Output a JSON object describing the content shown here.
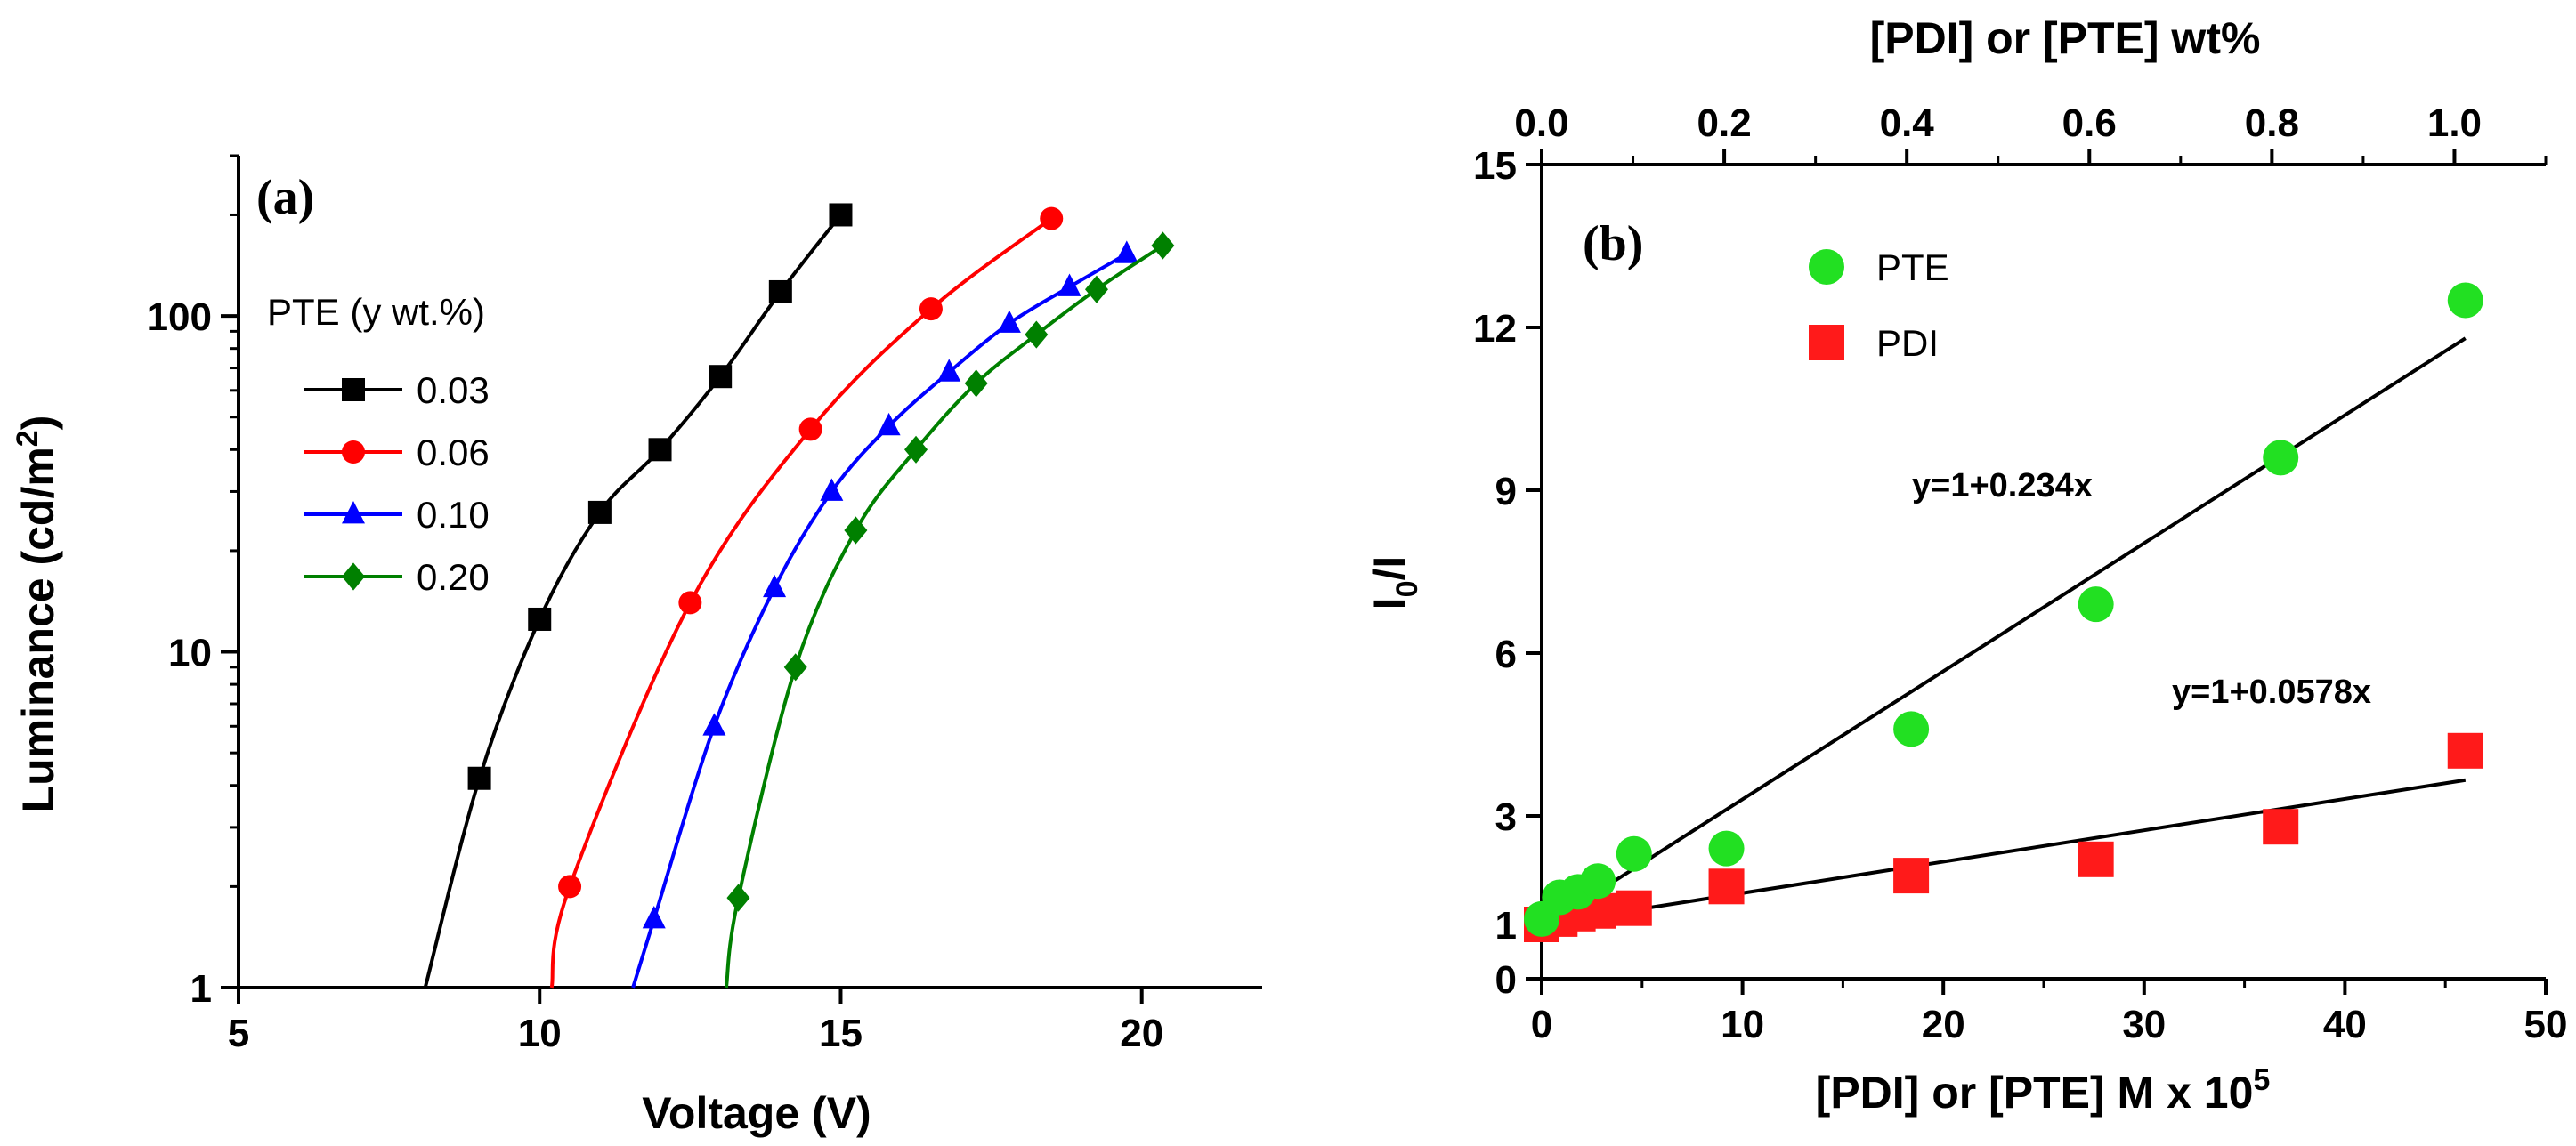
{
  "chart_data": [
    {
      "panel": "(a)",
      "type": "line",
      "xlabel": "Voltage (V)",
      "ylabel": "Luminance (cd/m²)",
      "xlim": [
        5,
        22
      ],
      "ylim": [
        1,
        300
      ],
      "yscale": "log",
      "xticks": [
        5,
        10,
        15,
        20
      ],
      "yticks": [
        1,
        10,
        100
      ],
      "legend_title": "PTE (y wt.%)",
      "legend_position": "upper-left",
      "series": [
        {
          "name": "0.03",
          "color": "#000000",
          "marker": "square",
          "x": [
            8.1,
            9.0,
            10.0,
            11.0,
            12.0,
            13.0,
            14.0,
            15.0
          ],
          "y": [
            1.0,
            4.2,
            12.5,
            26,
            40,
            66,
            118,
            200
          ]
        },
        {
          "name": "0.06",
          "color": "#ff0000",
          "marker": "circle",
          "x": [
            10.2,
            10.5,
            12.5,
            14.5,
            16.5,
            18.5
          ],
          "y": [
            1.0,
            2.0,
            14,
            46,
            105,
            195
          ]
        },
        {
          "name": "0.10",
          "color": "#0000ff",
          "marker": "triangle",
          "x": [
            11.55,
            11.9,
            12.9,
            13.9,
            14.85,
            15.8,
            16.8,
            17.8,
            18.8,
            19.75
          ],
          "y": [
            1.0,
            1.6,
            6,
            15.5,
            30,
            47,
            68,
            95,
            122,
            153
          ]
        },
        {
          "name": "0.20",
          "color": "#008000",
          "marker": "diamond",
          "x": [
            13.1,
            13.3,
            14.25,
            15.25,
            16.25,
            17.25,
            18.25,
            19.25,
            20.35
          ],
          "y": [
            1.0,
            1.85,
            9,
            23,
            40,
            63,
            88,
            120,
            162
          ]
        }
      ]
    },
    {
      "panel": "(b)",
      "type": "scatter",
      "xlabel": "[PDI] or [PTE] M x 10",
      "xlabel_sup": "5",
      "ylabel": "I",
      "ylabel_sub": "0",
      "ylabel_tail": "/I",
      "x2label": "[PDI] or [PTE] wt%",
      "xlim": [
        0,
        50
      ],
      "ylim": [
        0,
        15
      ],
      "xticks": [
        0,
        10,
        20,
        30,
        40,
        50
      ],
      "yticks": [
        0,
        1,
        3,
        6,
        9,
        12,
        15
      ],
      "x2lim": [
        0.0,
        1.1
      ],
      "x2ticks": [
        "0.0",
        "0.2",
        "0.4",
        "0.6",
        "0.8",
        "1.0"
      ],
      "legend_position": "upper-left",
      "series": [
        {
          "name": "PTE",
          "color": "#22e022",
          "marker": "circle",
          "x": [
            0.0,
            0.9,
            1.8,
            2.8,
            4.6,
            9.2,
            18.4,
            27.6,
            36.8,
            46.0
          ],
          "y": [
            1.1,
            1.5,
            1.6,
            1.8,
            2.3,
            2.4,
            4.6,
            6.9,
            9.6,
            12.5
          ]
        },
        {
          "name": "PDI",
          "color": "#ff1a1a",
          "marker": "square",
          "x": [
            0.0,
            0.9,
            1.8,
            2.8,
            4.6,
            9.2,
            18.4,
            27.6,
            36.8,
            46.0
          ],
          "y": [
            1.0,
            1.1,
            1.2,
            1.25,
            1.3,
            1.7,
            1.9,
            2.2,
            2.8,
            4.2
          ]
        }
      ],
      "fits": [
        {
          "label": "y=1+0.234x",
          "color": "#209020",
          "x": [
            1.5,
            46
          ],
          "y": [
            1.3,
            11.8
          ]
        },
        {
          "label": "y=1+0.0578x",
          "color": "#ff1a1a",
          "x": [
            0,
            46
          ],
          "y": [
            1.0,
            3.66
          ]
        }
      ]
    }
  ]
}
